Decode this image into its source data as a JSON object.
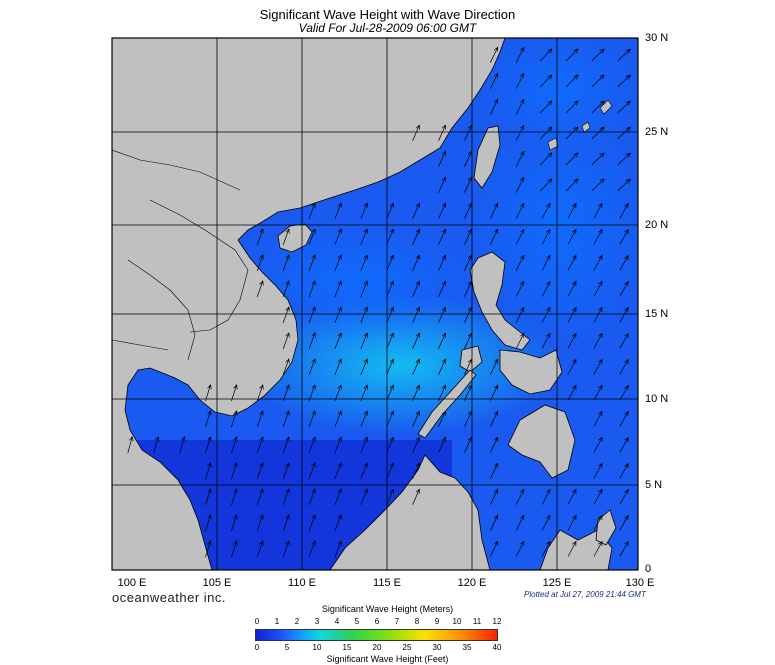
{
  "title": "Significant Wave Height with Wave Direction",
  "subtitle": "Valid For Jul-28-2009 06:00 GMT",
  "longitude_labels": [
    "100 E",
    "105 E",
    "110 E",
    "115 E",
    "120 E",
    "125 E",
    "130 E"
  ],
  "latitude_labels": [
    "30 N",
    "25 N",
    "20 N",
    "15 N",
    "10 N",
    "5 N",
    "0"
  ],
  "brand": "oceanweather inc.",
  "plotted": "Plotted at Jul 27, 2009 21:44 GMT",
  "legend": {
    "meters_title": "Significant Wave Height (Meters)",
    "meters_ticks": [
      "0",
      "1",
      "2",
      "3",
      "4",
      "5",
      "6",
      "7",
      "8",
      "9",
      "10",
      "11",
      "12"
    ],
    "feet_title": "Significant Wave Height (Feet)",
    "feet_ticks": [
      "0",
      "5",
      "10",
      "15",
      "20",
      "25",
      "30",
      "35",
      "40"
    ]
  },
  "colors": {
    "land": "#c0c0c0",
    "sea_low": "#1030e0",
    "sea_mid": "#1e74f5",
    "sea_high": "#12b8f0",
    "arrows": "#000000"
  },
  "map_extent": {
    "lon": [
      99,
      130
    ],
    "lat": [
      0,
      30
    ]
  }
}
